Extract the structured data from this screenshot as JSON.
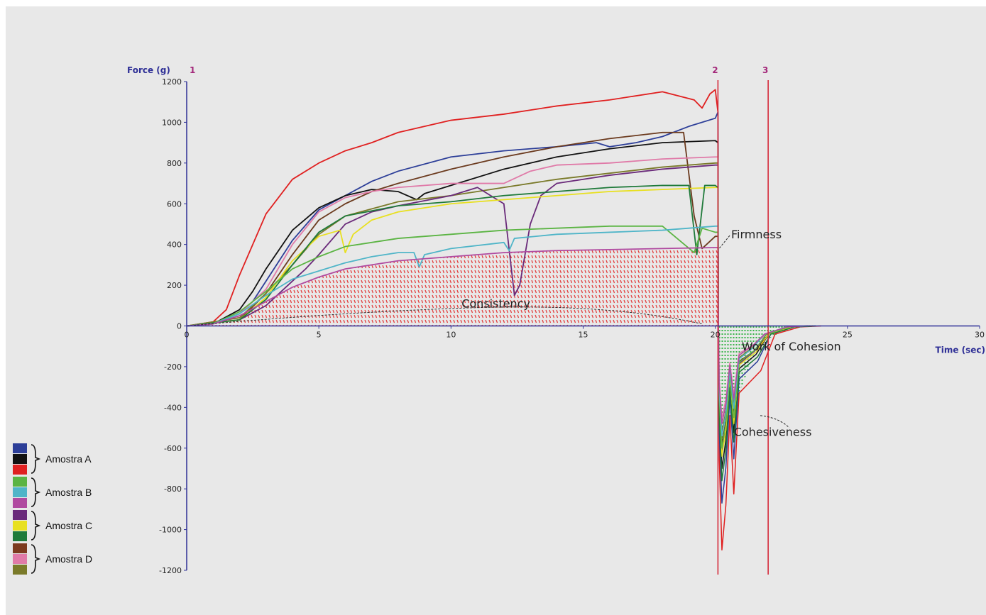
{
  "chart_data": {
    "type": "line",
    "xlabel": "Time (sec)",
    "ylabel": "Force (g)",
    "xlim": [
      0,
      30
    ],
    "ylim": [
      -1200,
      1200
    ],
    "x_ticks": [
      0,
      5,
      10,
      15,
      20,
      25,
      30
    ],
    "y_ticks": [
      1200,
      1000,
      800,
      600,
      400,
      200,
      0,
      -200,
      -400,
      -600,
      -800,
      -1000,
      -1200
    ],
    "markers": [
      {
        "label": "1",
        "x": 0
      },
      {
        "label": "2",
        "x": 20.1
      },
      {
        "label": "3",
        "x": 22
      }
    ],
    "annotations": [
      {
        "text": "Firmness",
        "x": 20.6,
        "y": 430
      },
      {
        "text": "Consistency",
        "x": 10.4,
        "y": 90
      },
      {
        "text": "Work of Cohesion",
        "x": 21.0,
        "y": -120
      },
      {
        "text": "Cohesiveness",
        "x": 20.7,
        "y": -540
      }
    ],
    "colors": {
      "axis": "#2e2f96",
      "marker_line": "#d42a3a",
      "consistency_fill": "#e23b3b",
      "cohesion_fill": "#39b54a"
    },
    "legend": [
      {
        "label": "Amostra A",
        "colors": [
          "#2c3e98",
          "#111111",
          "#e02020"
        ]
      },
      {
        "label": "Amostra B",
        "colors": [
          "#5bb443",
          "#4fb5c8",
          "#b04aa0"
        ]
      },
      {
        "label": "Amostra C",
        "colors": [
          "#6a2a7a",
          "#e8e020",
          "#1f7a3a"
        ]
      },
      {
        "label": "Amostra D",
        "colors": [
          "#7b3a1e",
          "#e07aa8",
          "#7a7a2a"
        ]
      }
    ],
    "series": [
      {
        "color": "#e02020",
        "x": [
          0,
          1,
          1.5,
          2,
          2.5,
          3,
          4,
          5,
          6,
          7,
          8,
          10,
          12,
          14,
          16,
          18,
          19.2,
          19.5,
          19.8,
          20,
          20.1
        ],
        "y": [
          0,
          20,
          80,
          250,
          400,
          550,
          720,
          800,
          860,
          900,
          950,
          1010,
          1040,
          1080,
          1110,
          1150,
          1110,
          1070,
          1140,
          1160,
          1050
        ],
        "neg": {
          "start": 20.1,
          "min": -1100,
          "end": 22.8
        }
      },
      {
        "color": "#2c3e98",
        "x": [
          0,
          1,
          2,
          2.5,
          3,
          4,
          5,
          6,
          7,
          8,
          10,
          12,
          14,
          15.5,
          16,
          17,
          18,
          19,
          20,
          20.1
        ],
        "y": [
          0,
          10,
          60,
          120,
          220,
          420,
          570,
          640,
          710,
          760,
          830,
          860,
          880,
          900,
          880,
          900,
          930,
          980,
          1020,
          1050
        ],
        "neg": {
          "start": 20.1,
          "min": -870,
          "end": 22.6
        }
      },
      {
        "color": "#111111",
        "x": [
          0,
          1,
          2,
          2.5,
          3,
          4,
          5,
          6,
          7,
          8,
          8.7,
          9,
          10,
          12,
          14,
          16,
          18,
          20,
          20.1
        ],
        "y": [
          0,
          10,
          80,
          170,
          280,
          470,
          580,
          640,
          670,
          660,
          620,
          650,
          690,
          770,
          830,
          870,
          900,
          910,
          900
        ],
        "neg": {
          "start": 20.1,
          "min": -700,
          "end": 22.5
        }
      },
      {
        "color": "#6b3a1e",
        "x": [
          0,
          2,
          3,
          4,
          5,
          6,
          7,
          8,
          10,
          12,
          14,
          16,
          18,
          18.8,
          19.2,
          19.5,
          20,
          20.1
        ],
        "y": [
          0,
          30,
          160,
          350,
          520,
          600,
          660,
          700,
          770,
          830,
          880,
          920,
          950,
          950,
          540,
          380,
          440,
          440
        ],
        "neg": {
          "start": 20.1,
          "min": -580,
          "end": 22.5
        }
      },
      {
        "color": "#e07aa8",
        "x": [
          0,
          1,
          2,
          3,
          4,
          5,
          6,
          7,
          8,
          10,
          11,
          12,
          13,
          14,
          16,
          18,
          20,
          20.1
        ],
        "y": [
          0,
          10,
          60,
          180,
          400,
          560,
          630,
          660,
          680,
          700,
          700,
          700,
          760,
          790,
          800,
          820,
          830,
          830
        ],
        "neg": {
          "start": 20.1,
          "min": -450,
          "end": 22.4
        }
      },
      {
        "color": "#7a7a2a",
        "x": [
          0,
          2,
          3,
          4,
          5,
          6,
          8,
          10,
          12,
          14,
          16,
          18,
          20,
          20.1
        ],
        "y": [
          0,
          40,
          160,
          300,
          450,
          540,
          610,
          640,
          680,
          720,
          750,
          780,
          800,
          800
        ],
        "neg": {
          "start": 20.1,
          "min": -520,
          "end": 22.3
        }
      },
      {
        "color": "#6a2a7a",
        "x": [
          0,
          2,
          3,
          4,
          4.5,
          5,
          6,
          7,
          8,
          10,
          11,
          12,
          12.4,
          12.6,
          13,
          13.4,
          14,
          16,
          18,
          20,
          20.1
        ],
        "y": [
          0,
          30,
          100,
          220,
          280,
          350,
          500,
          560,
          590,
          640,
          680,
          600,
          150,
          200,
          500,
          640,
          700,
          740,
          770,
          790,
          790
        ],
        "neg": {
          "start": 20.1,
          "min": -620,
          "end": 22.4
        }
      },
      {
        "color": "#e8e020",
        "x": [
          0,
          2,
          3,
          4,
          5,
          5.8,
          6,
          6.3,
          7,
          8,
          10,
          12,
          14,
          16,
          18,
          20,
          20.1
        ],
        "y": [
          0,
          30,
          140,
          320,
          440,
          470,
          360,
          450,
          520,
          560,
          600,
          620,
          640,
          660,
          670,
          680,
          680
        ],
        "neg": {
          "start": 20.1,
          "min": -640,
          "end": 22.5
        }
      },
      {
        "color": "#1f7a3a",
        "x": [
          0,
          2,
          3,
          4,
          5,
          6,
          8,
          10,
          12,
          14,
          16,
          18,
          19,
          19.3,
          19.6,
          20,
          20.1
        ],
        "y": [
          0,
          30,
          130,
          300,
          460,
          540,
          590,
          610,
          640,
          660,
          680,
          690,
          690,
          350,
          690,
          690,
          680
        ],
        "neg": {
          "start": 20.1,
          "min": -760,
          "end": 22.6
        }
      },
      {
        "color": "#5bb443",
        "x": [
          0,
          1,
          2,
          3,
          4,
          5,
          6,
          8,
          10,
          12,
          14,
          16,
          18,
          19.2,
          19.5,
          20,
          20.1
        ],
        "y": [
          0,
          10,
          70,
          170,
          280,
          340,
          390,
          430,
          450,
          470,
          480,
          490,
          490,
          360,
          480,
          460,
          460
        ],
        "neg": {
          "start": 20.1,
          "min": -600,
          "end": 22.4
        }
      },
      {
        "color": "#4fb5c8",
        "x": [
          0,
          1,
          2,
          3,
          4,
          5,
          6,
          7,
          8,
          8.6,
          8.8,
          9,
          10,
          12,
          12.2,
          12.4,
          14,
          16,
          18,
          20,
          20.1
        ],
        "y": [
          0,
          10,
          60,
          150,
          230,
          270,
          310,
          340,
          360,
          360,
          290,
          350,
          380,
          410,
          370,
          430,
          450,
          460,
          470,
          490,
          490
        ],
        "neg": {
          "start": 20.1,
          "min": -540,
          "end": 22.3
        }
      },
      {
        "color": "#b04aa0",
        "x": [
          0,
          1,
          2,
          3,
          4,
          5,
          6,
          8,
          10,
          12,
          14,
          16,
          18,
          20,
          20.1
        ],
        "y": [
          0,
          10,
          50,
          120,
          190,
          240,
          280,
          320,
          340,
          360,
          370,
          375,
          380,
          385,
          385
        ],
        "neg": {
          "start": 20.1,
          "min": -480,
          "end": 22.3
        }
      }
    ]
  }
}
